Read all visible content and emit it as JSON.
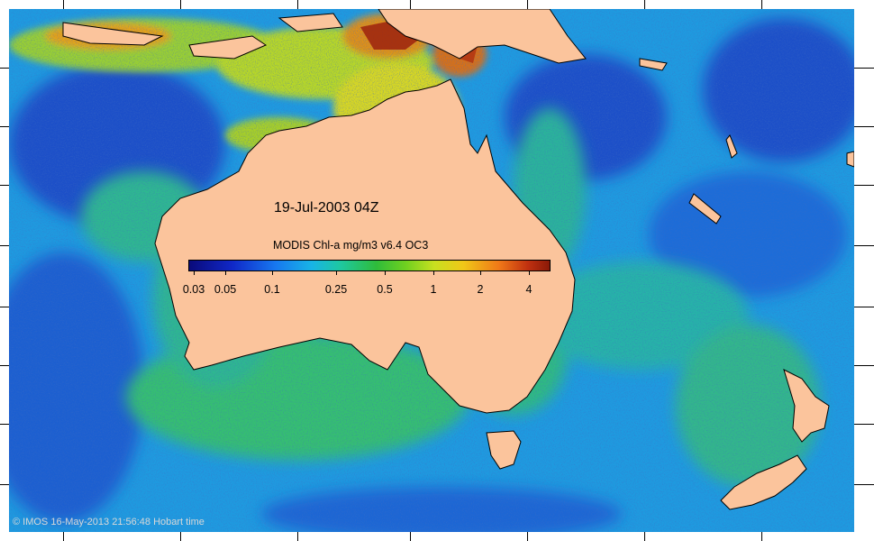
{
  "map": {
    "title": "19-Jul-2003 04Z",
    "colorbar_title": "MODIS Chl-a mg/m3 v6.4 OC3",
    "colorbar_labels": [
      "0.03",
      "0.05",
      "0.1",
      "0.25",
      "0.5",
      "1",
      "2",
      "4"
    ],
    "credit": "© IMOS 16-May-2013 21:56:48 Hobart time",
    "colors": {
      "ocean_deep": "#1a4fc8",
      "ocean_mid": "#1e9be0",
      "ocean_green": "#34c070",
      "coastal_yellow": "#d8d820",
      "coastal_red": "#c03a10",
      "land": "#fbc49c"
    }
  }
}
